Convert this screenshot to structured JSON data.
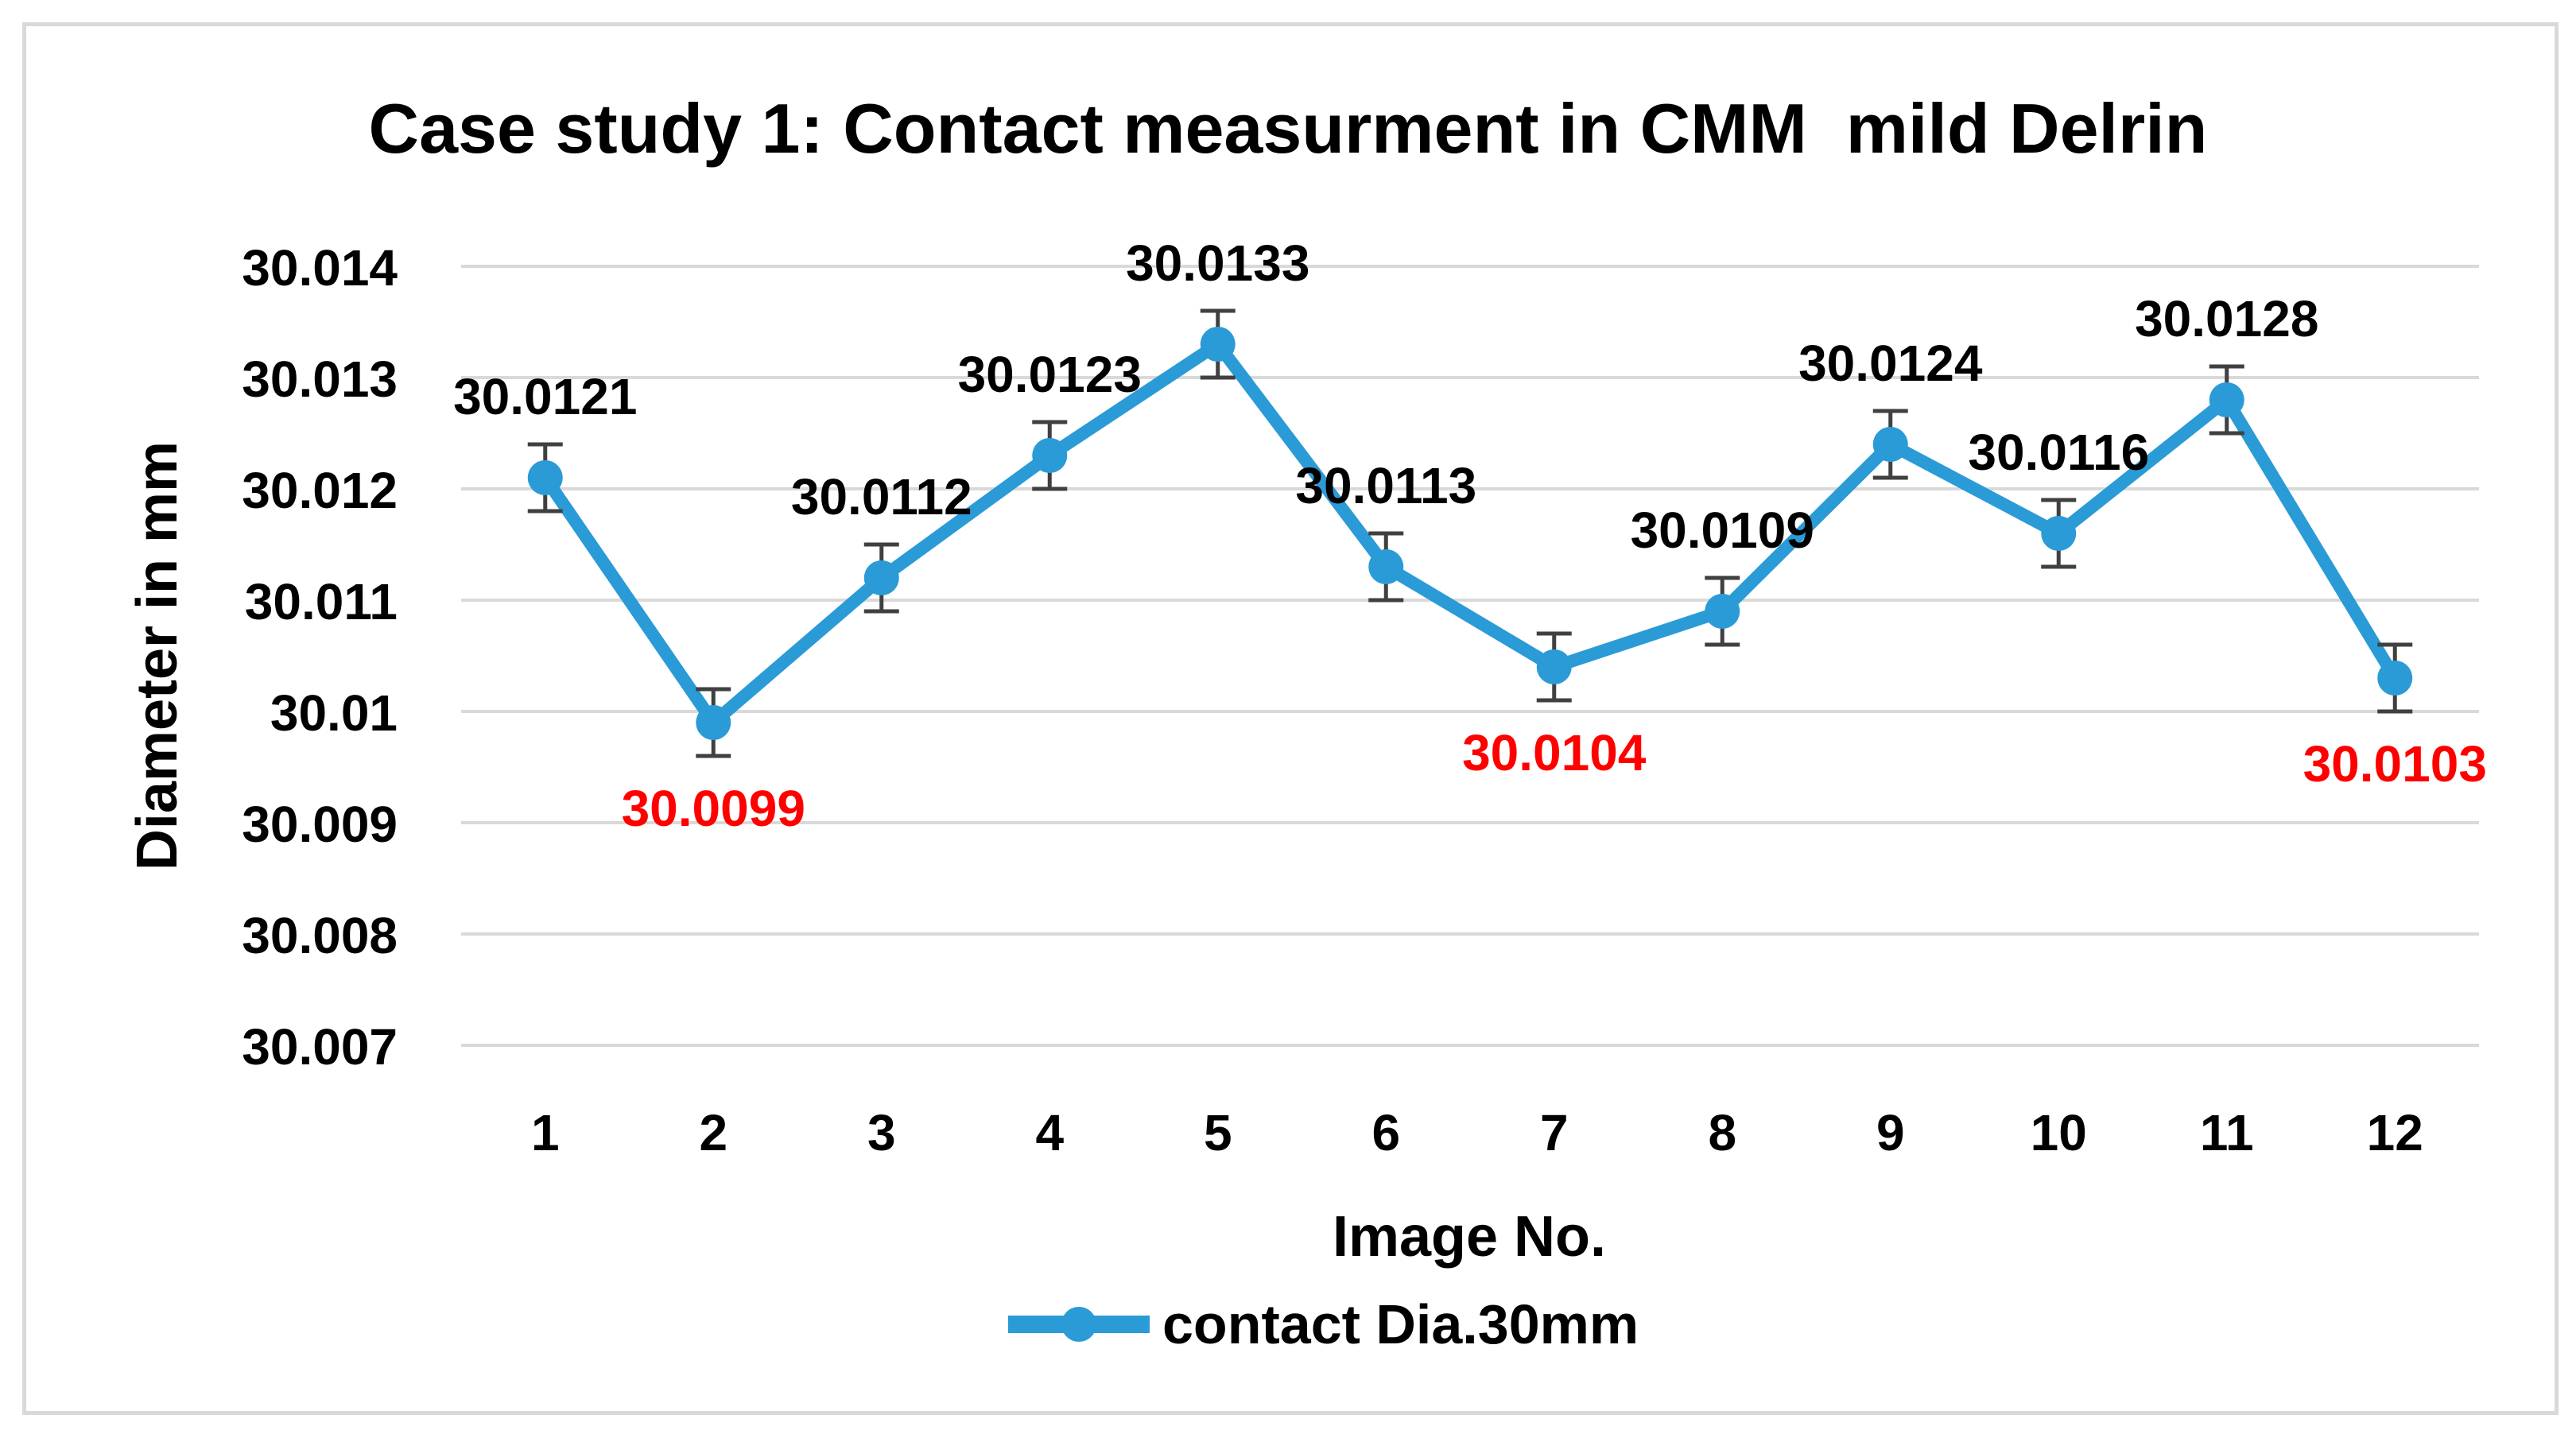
{
  "chart_data": {
    "type": "line",
    "title": "Case study 1: Contact measurment in CMM  mild Delrin",
    "xlabel": "Image No.",
    "ylabel": "Diameter in mm",
    "categories": [
      "1",
      "2",
      "3",
      "4",
      "5",
      "6",
      "7",
      "8",
      "9",
      "10",
      "11",
      "12"
    ],
    "series": [
      {
        "name": "contact Dia.30mm",
        "color": "#2a9bd6",
        "values": [
          30.0121,
          30.0099,
          30.0112,
          30.0123,
          30.0133,
          30.0113,
          30.0104,
          30.0109,
          30.0124,
          30.0116,
          30.0128,
          30.0103
        ],
        "error": 0.0003,
        "data_labels": [
          "30.0121",
          "30.0099",
          "30.0112",
          "30.0123",
          "30.0133",
          "30.0113",
          "30.0104",
          "30.0109",
          "30.0124",
          "30.0116",
          "30.0128",
          "30.0103"
        ],
        "label_colors": [
          "#000000",
          "#ff0000",
          "#000000",
          "#000000",
          "#000000",
          "#000000",
          "#ff0000",
          "#000000",
          "#000000",
          "#000000",
          "#000000",
          "#ff0000"
        ],
        "label_positions": [
          "above",
          "below",
          "above",
          "above",
          "above",
          "above",
          "below",
          "above",
          "above",
          "above",
          "above",
          "below"
        ]
      }
    ],
    "ylim": [
      30.007,
      30.014
    ],
    "yticks": [
      30.007,
      30.008,
      30.009,
      30.01,
      30.011,
      30.012,
      30.013,
      30.014
    ],
    "ytick_labels": [
      "30.007",
      "30.008",
      "30.009",
      "30.01",
      "30.011",
      "30.012",
      "30.013",
      "30.014"
    ],
    "grid": true,
    "legend_position": "bottom"
  }
}
